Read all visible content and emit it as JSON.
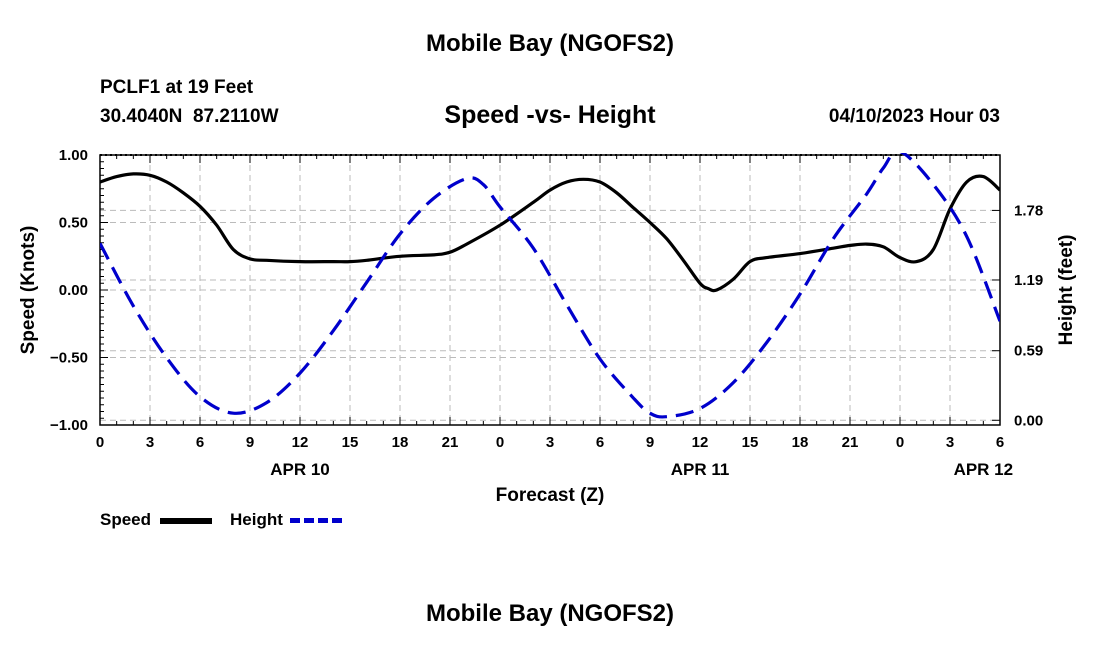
{
  "title": "Mobile Bay (NGOFS2)",
  "footer_title": "Mobile Bay (NGOFS2)",
  "station": {
    "name": "PCLF1 at 19 Feet",
    "coords": "30.4040N  87.2110W"
  },
  "subtitle": "Speed -vs- Height",
  "run_time": "04/10/2023 Hour 03",
  "legend": {
    "speed_label": "Speed",
    "height_label": "Height"
  },
  "colors": {
    "speed": "#000000",
    "height": "#0000cc",
    "grid": "#bbbbbb"
  },
  "chart_data": {
    "type": "line",
    "title": "Speed -vs- Height",
    "xlabel": "Forecast (Z)",
    "ylabel": "Speed (Knots)",
    "y2label": "Height (feet)",
    "xlim": [
      0,
      54
    ],
    "ylim": [
      -1.0,
      1.0
    ],
    "y2lim": [
      -0.04,
      2.25
    ],
    "grid": true,
    "legend_position": "bottom-left",
    "x_ticks": [
      0,
      3,
      6,
      9,
      12,
      15,
      18,
      21,
      24,
      27,
      30,
      33,
      36,
      39,
      42,
      45,
      48,
      51,
      54
    ],
    "x_tick_labels": [
      "0",
      "3",
      "6",
      "9",
      "12",
      "15",
      "18",
      "21",
      "0",
      "3",
      "6",
      "9",
      "12",
      "15",
      "18",
      "21",
      "0",
      "3",
      "6"
    ],
    "date_labels": [
      {
        "x": 12,
        "label": "APR 10"
      },
      {
        "x": 36,
        "label": "APR 11"
      },
      {
        "x": 53,
        "label": "APR 12"
      }
    ],
    "y_ticks": [
      1.0,
      0.5,
      0.0,
      -0.5,
      -1.0
    ],
    "y_tick_labels": [
      "1.00",
      "0.50",
      "0.00",
      "−0.50",
      "−1.00"
    ],
    "y2_ticks": [
      1.78,
      1.19,
      0.59,
      0.0
    ],
    "y2_tick_labels": [
      "1.78",
      "1.19",
      "0.59",
      "0.00"
    ],
    "series": [
      {
        "name": "Speed",
        "axis": "left",
        "style": "solid",
        "x": [
          0,
          1,
          2,
          3,
          4,
          5,
          6,
          7,
          8,
          9,
          10,
          12,
          14,
          15,
          16,
          18,
          20,
          21,
          22,
          24,
          26,
          27,
          28,
          29,
          30,
          31,
          32,
          33,
          34,
          35,
          36,
          36.5,
          37,
          38,
          39,
          40,
          42,
          44,
          45,
          46,
          47,
          48,
          49,
          50,
          51,
          52,
          53,
          54
        ],
        "y": [
          0.8,
          0.84,
          0.86,
          0.85,
          0.8,
          0.72,
          0.62,
          0.48,
          0.3,
          0.23,
          0.22,
          0.21,
          0.21,
          0.21,
          0.22,
          0.25,
          0.26,
          0.28,
          0.34,
          0.48,
          0.65,
          0.74,
          0.8,
          0.82,
          0.8,
          0.72,
          0.61,
          0.5,
          0.38,
          0.22,
          0.05,
          0.01,
          0.0,
          0.08,
          0.21,
          0.24,
          0.27,
          0.31,
          0.33,
          0.34,
          0.32,
          0.24,
          0.21,
          0.3,
          0.6,
          0.8,
          0.84,
          0.74
        ]
      },
      {
        "name": "Height",
        "axis": "right",
        "style": "dashed",
        "x": [
          0,
          2,
          4,
          6,
          8,
          10,
          12,
          14,
          16,
          18,
          20,
          22,
          23,
          24,
          26,
          28,
          30,
          32,
          33,
          34,
          36,
          38,
          40,
          42,
          44,
          46,
          47,
          48,
          50,
          52,
          54
        ],
        "y": [
          1.5,
          0.97,
          0.53,
          0.2,
          0.06,
          0.15,
          0.4,
          0.76,
          1.17,
          1.58,
          1.88,
          2.05,
          2.0,
          1.81,
          1.46,
          0.98,
          0.52,
          0.19,
          0.06,
          0.03,
          0.1,
          0.32,
          0.66,
          1.07,
          1.54,
          1.92,
          2.14,
          2.28,
          2.0,
          1.56,
          0.84
        ]
      }
    ]
  }
}
